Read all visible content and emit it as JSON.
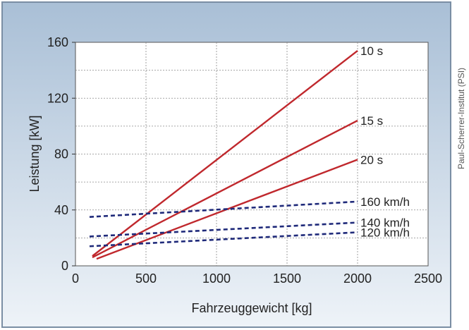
{
  "credit": "Paul-Scherrer-Institut (PSI)",
  "colors": {
    "background_top": "#a9bfd6",
    "background_bottom": "#eef3f8",
    "frame": "#7a8ea4",
    "plot_area": "#ffffff",
    "grid": "#8a8a8a",
    "acceleration_lines": "#c0282d",
    "speed_lines": "#1f2a7a"
  },
  "chart_data": {
    "type": "line",
    "xlabel": "Fahrzeuggewicht [kg]",
    "ylabel": "Leistung [kW]",
    "xlim": [
      0,
      2500
    ],
    "ylim": [
      0,
      160
    ],
    "xticks": [
      "0",
      "500",
      "1000",
      "1500",
      "2000",
      "2500"
    ],
    "yticks": [
      "0",
      "40",
      "80",
      "120",
      "160"
    ],
    "grid": true,
    "series": [
      {
        "name": "10 s",
        "style": "solid",
        "color": "#c0282d",
        "x": [
          120,
          2000
        ],
        "y": [
          7,
          154
        ]
      },
      {
        "name": "15 s",
        "style": "solid",
        "color": "#c0282d",
        "x": [
          120,
          2000
        ],
        "y": [
          6,
          104
        ]
      },
      {
        "name": "20 s",
        "style": "solid",
        "color": "#c0282d",
        "x": [
          150,
          2000
        ],
        "y": [
          5,
          76
        ]
      },
      {
        "name": "160 km/h",
        "style": "dashed",
        "color": "#1f2a7a",
        "x": [
          100,
          2000
        ],
        "y": [
          35,
          46
        ]
      },
      {
        "name": "140 km/h",
        "style": "dashed",
        "color": "#1f2a7a",
        "x": [
          100,
          2000
        ],
        "y": [
          21,
          31
        ]
      },
      {
        "name": "120 km/h",
        "style": "dashed",
        "color": "#1f2a7a",
        "x": [
          100,
          2000
        ],
        "y": [
          14,
          24
        ]
      }
    ]
  }
}
